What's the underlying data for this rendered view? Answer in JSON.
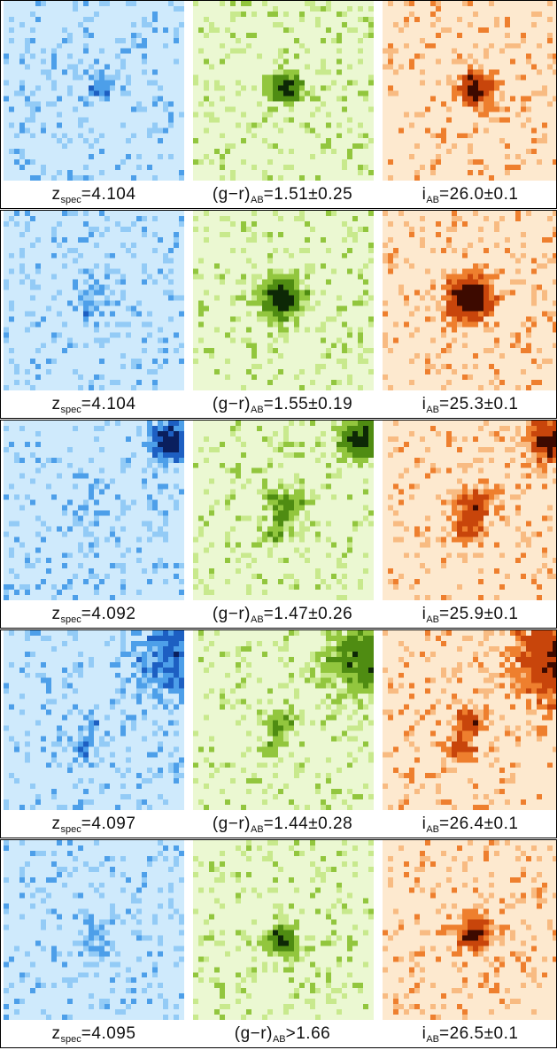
{
  "rows": [
    {
      "labels": [
        {
          "main": "z",
          "sub": "spec",
          "rest": "=4.104"
        },
        {
          "main": "(g−r)",
          "sub": "AB",
          "rest": "=1.51±0.25"
        },
        {
          "main": "i",
          "sub": "AB",
          "rest": "=26.0±0.1"
        }
      ]
    },
    {
      "labels": [
        {
          "main": "z",
          "sub": "spec",
          "rest": "=4.104"
        },
        {
          "main": "(g−r)",
          "sub": "AB",
          "rest": "=1.55±0.19"
        },
        {
          "main": "i",
          "sub": "AB",
          "rest": "=25.3±0.1"
        }
      ]
    },
    {
      "labels": [
        {
          "main": "z",
          "sub": "spec",
          "rest": "=4.092"
        },
        {
          "main": "(g−r)",
          "sub": "AB",
          "rest": "=1.47±0.26"
        },
        {
          "main": "i",
          "sub": "AB",
          "rest": "=25.9±0.1"
        }
      ]
    },
    {
      "labels": [
        {
          "main": "z",
          "sub": "spec",
          "rest": "=4.097"
        },
        {
          "main": "(g−r)",
          "sub": "AB",
          "rest": "=1.44±0.28"
        },
        {
          "main": "i",
          "sub": "AB",
          "rest": "=26.4±0.1"
        }
      ]
    },
    {
      "labels": [
        {
          "main": "z",
          "sub": "spec",
          "rest": "=4.095"
        },
        {
          "main": "(g−r)",
          "sub": "AB",
          "rest": ">1.66"
        },
        {
          "main": "i",
          "sub": "AB",
          "rest": "=26.5±0.1"
        }
      ]
    }
  ]
}
